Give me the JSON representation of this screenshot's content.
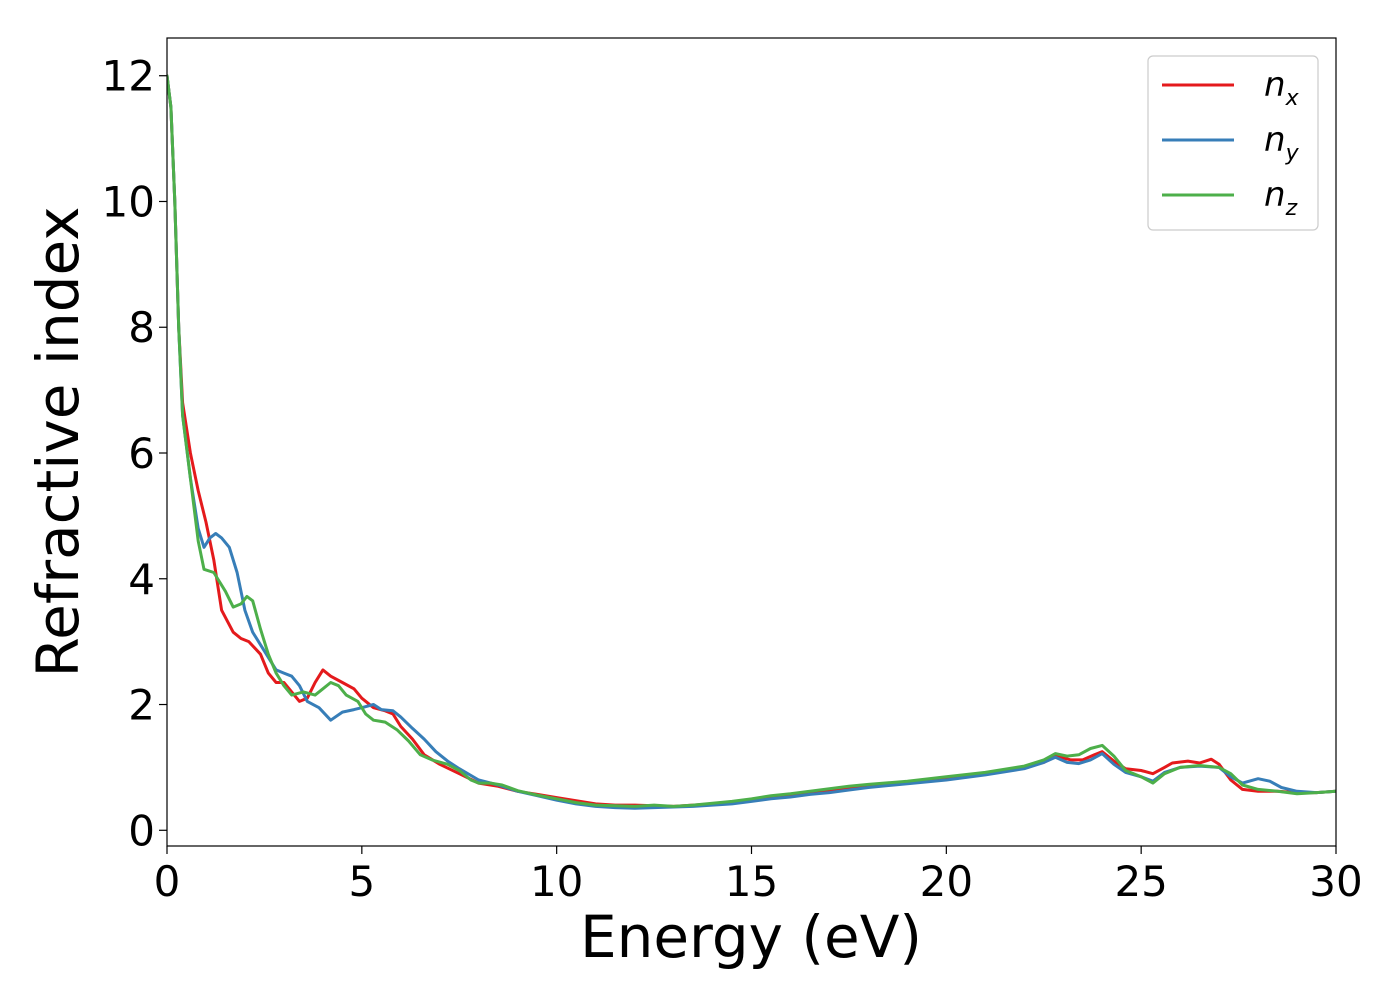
{
  "chart_data": {
    "type": "line",
    "title": "",
    "xlabel": "Energy (eV)",
    "ylabel": "Refractive index",
    "xlim": [
      0,
      30
    ],
    "ylim": [
      -0.25,
      12.6
    ],
    "x_ticks": [
      0,
      5,
      10,
      15,
      20,
      25,
      30
    ],
    "y_ticks": [
      0,
      2,
      4,
      6,
      8,
      10,
      12
    ],
    "grid": false,
    "legend_position": "top-right",
    "series": [
      {
        "name_base": "n",
        "name_sub": "x",
        "color": "#e41a1c",
        "points": [
          [
            0,
            12
          ],
          [
            0.1,
            11.5
          ],
          [
            0.2,
            10
          ],
          [
            0.3,
            8
          ],
          [
            0.4,
            6.8
          ],
          [
            0.6,
            6
          ],
          [
            0.8,
            5.4
          ],
          [
            1.0,
            4.9
          ],
          [
            1.2,
            4.3
          ],
          [
            1.4,
            3.5
          ],
          [
            1.7,
            3.15
          ],
          [
            1.9,
            3.05
          ],
          [
            2.1,
            3.0
          ],
          [
            2.4,
            2.8
          ],
          [
            2.6,
            2.5
          ],
          [
            2.8,
            2.35
          ],
          [
            3.0,
            2.35
          ],
          [
            3.2,
            2.2
          ],
          [
            3.4,
            2.05
          ],
          [
            3.6,
            2.1
          ],
          [
            3.8,
            2.35
          ],
          [
            4.0,
            2.55
          ],
          [
            4.2,
            2.45
          ],
          [
            4.5,
            2.35
          ],
          [
            4.8,
            2.25
          ],
          [
            5.0,
            2.1
          ],
          [
            5.3,
            1.95
          ],
          [
            5.6,
            1.9
          ],
          [
            5.8,
            1.85
          ],
          [
            6.0,
            1.65
          ],
          [
            6.3,
            1.45
          ],
          [
            6.6,
            1.2
          ],
          [
            7.0,
            1.05
          ],
          [
            7.5,
            0.9
          ],
          [
            8.0,
            0.75
          ],
          [
            8.5,
            0.7
          ],
          [
            9.0,
            0.62
          ],
          [
            9.5,
            0.57
          ],
          [
            10.0,
            0.52
          ],
          [
            10.5,
            0.47
          ],
          [
            11.0,
            0.42
          ],
          [
            11.5,
            0.4
          ],
          [
            12.0,
            0.4
          ],
          [
            12.5,
            0.39
          ],
          [
            13.0,
            0.38
          ],
          [
            13.5,
            0.4
          ],
          [
            14.0,
            0.42
          ],
          [
            14.5,
            0.44
          ],
          [
            15.0,
            0.48
          ],
          [
            15.5,
            0.52
          ],
          [
            16.0,
            0.55
          ],
          [
            16.5,
            0.58
          ],
          [
            17.0,
            0.62
          ],
          [
            17.5,
            0.66
          ],
          [
            18.0,
            0.7
          ],
          [
            19.0,
            0.76
          ],
          [
            20.0,
            0.83
          ],
          [
            21.0,
            0.9
          ],
          [
            22.0,
            1.0
          ],
          [
            22.5,
            1.08
          ],
          [
            22.8,
            1.18
          ],
          [
            23.2,
            1.12
          ],
          [
            23.5,
            1.12
          ],
          [
            23.8,
            1.2
          ],
          [
            24.0,
            1.25
          ],
          [
            24.3,
            1.1
          ],
          [
            24.6,
            0.98
          ],
          [
            25.0,
            0.95
          ],
          [
            25.3,
            0.9
          ],
          [
            25.6,
            1.0
          ],
          [
            25.8,
            1.07
          ],
          [
            26.2,
            1.1
          ],
          [
            26.5,
            1.07
          ],
          [
            26.8,
            1.13
          ],
          [
            27.0,
            1.05
          ],
          [
            27.3,
            0.8
          ],
          [
            27.6,
            0.65
          ],
          [
            28.0,
            0.62
          ],
          [
            28.5,
            0.62
          ],
          [
            29.0,
            0.6
          ],
          [
            29.5,
            0.6
          ],
          [
            30.0,
            0.62
          ]
        ]
      },
      {
        "name_base": "n",
        "name_sub": "y",
        "color": "#377eb8",
        "points": [
          [
            0,
            12
          ],
          [
            0.1,
            11.5
          ],
          [
            0.2,
            10
          ],
          [
            0.3,
            8
          ],
          [
            0.4,
            6.6
          ],
          [
            0.6,
            5.6
          ],
          [
            0.8,
            4.8
          ],
          [
            0.95,
            4.5
          ],
          [
            1.1,
            4.65
          ],
          [
            1.25,
            4.72
          ],
          [
            1.4,
            4.65
          ],
          [
            1.6,
            4.5
          ],
          [
            1.8,
            4.1
          ],
          [
            2.0,
            3.5
          ],
          [
            2.2,
            3.15
          ],
          [
            2.5,
            2.85
          ],
          [
            2.8,
            2.55
          ],
          [
            3.0,
            2.5
          ],
          [
            3.2,
            2.45
          ],
          [
            3.4,
            2.3
          ],
          [
            3.6,
            2.05
          ],
          [
            3.9,
            1.95
          ],
          [
            4.2,
            1.75
          ],
          [
            4.5,
            1.88
          ],
          [
            4.8,
            1.92
          ],
          [
            5.0,
            1.95
          ],
          [
            5.3,
            2.0
          ],
          [
            5.5,
            1.92
          ],
          [
            5.8,
            1.9
          ],
          [
            6.0,
            1.8
          ],
          [
            6.3,
            1.62
          ],
          [
            6.6,
            1.45
          ],
          [
            6.9,
            1.25
          ],
          [
            7.2,
            1.1
          ],
          [
            7.5,
            0.98
          ],
          [
            8.0,
            0.8
          ],
          [
            8.5,
            0.72
          ],
          [
            9.0,
            0.62
          ],
          [
            9.5,
            0.55
          ],
          [
            10.0,
            0.48
          ],
          [
            10.5,
            0.42
          ],
          [
            11.0,
            0.38
          ],
          [
            11.5,
            0.36
          ],
          [
            12.0,
            0.35
          ],
          [
            12.5,
            0.36
          ],
          [
            13.0,
            0.37
          ],
          [
            13.5,
            0.38
          ],
          [
            14.0,
            0.4
          ],
          [
            14.5,
            0.42
          ],
          [
            15.0,
            0.46
          ],
          [
            15.5,
            0.5
          ],
          [
            16.0,
            0.53
          ],
          [
            16.5,
            0.57
          ],
          [
            17.0,
            0.6
          ],
          [
            17.5,
            0.64
          ],
          [
            18.0,
            0.68
          ],
          [
            19.0,
            0.74
          ],
          [
            20.0,
            0.8
          ],
          [
            21.0,
            0.88
          ],
          [
            22.0,
            0.98
          ],
          [
            22.5,
            1.08
          ],
          [
            22.8,
            1.16
          ],
          [
            23.1,
            1.08
          ],
          [
            23.4,
            1.06
          ],
          [
            23.7,
            1.12
          ],
          [
            24.0,
            1.22
          ],
          [
            24.3,
            1.05
          ],
          [
            24.6,
            0.92
          ],
          [
            25.0,
            0.85
          ],
          [
            25.3,
            0.78
          ],
          [
            25.6,
            0.92
          ],
          [
            26.0,
            1.0
          ],
          [
            26.5,
            1.02
          ],
          [
            27.0,
            1.0
          ],
          [
            27.3,
            0.85
          ],
          [
            27.6,
            0.75
          ],
          [
            28.0,
            0.82
          ],
          [
            28.3,
            0.78
          ],
          [
            28.6,
            0.68
          ],
          [
            29.0,
            0.62
          ],
          [
            29.5,
            0.6
          ],
          [
            30.0,
            0.62
          ]
        ]
      },
      {
        "name_base": "n",
        "name_sub": "z",
        "color": "#4daf4a",
        "points": [
          [
            0,
            12
          ],
          [
            0.1,
            11.5
          ],
          [
            0.2,
            10
          ],
          [
            0.3,
            8
          ],
          [
            0.4,
            6.6
          ],
          [
            0.6,
            5.6
          ],
          [
            0.8,
            4.6
          ],
          [
            0.95,
            4.15
          ],
          [
            1.2,
            4.1
          ],
          [
            1.5,
            3.8
          ],
          [
            1.7,
            3.55
          ],
          [
            1.9,
            3.6
          ],
          [
            2.05,
            3.72
          ],
          [
            2.2,
            3.65
          ],
          [
            2.4,
            3.2
          ],
          [
            2.6,
            2.8
          ],
          [
            2.8,
            2.5
          ],
          [
            3.0,
            2.3
          ],
          [
            3.2,
            2.15
          ],
          [
            3.5,
            2.2
          ],
          [
            3.8,
            2.15
          ],
          [
            4.0,
            2.25
          ],
          [
            4.2,
            2.35
          ],
          [
            4.4,
            2.3
          ],
          [
            4.6,
            2.15
          ],
          [
            4.9,
            2.05
          ],
          [
            5.1,
            1.85
          ],
          [
            5.3,
            1.75
          ],
          [
            5.6,
            1.72
          ],
          [
            5.9,
            1.6
          ],
          [
            6.2,
            1.42
          ],
          [
            6.5,
            1.2
          ],
          [
            6.8,
            1.12
          ],
          [
            7.2,
            1.05
          ],
          [
            7.5,
            0.95
          ],
          [
            7.8,
            0.8
          ],
          [
            8.0,
            0.75
          ],
          [
            8.3,
            0.75
          ],
          [
            8.6,
            0.72
          ],
          [
            9.0,
            0.63
          ],
          [
            9.5,
            0.56
          ],
          [
            10.0,
            0.5
          ],
          [
            10.5,
            0.44
          ],
          [
            11.0,
            0.4
          ],
          [
            11.5,
            0.39
          ],
          [
            12.0,
            0.38
          ],
          [
            12.5,
            0.4
          ],
          [
            13.0,
            0.38
          ],
          [
            13.5,
            0.4
          ],
          [
            14.0,
            0.43
          ],
          [
            14.5,
            0.46
          ],
          [
            15.0,
            0.5
          ],
          [
            15.5,
            0.55
          ],
          [
            16.0,
            0.58
          ],
          [
            16.5,
            0.62
          ],
          [
            17.0,
            0.66
          ],
          [
            17.5,
            0.7
          ],
          [
            18.0,
            0.73
          ],
          [
            19.0,
            0.78
          ],
          [
            20.0,
            0.85
          ],
          [
            21.0,
            0.92
          ],
          [
            22.0,
            1.02
          ],
          [
            22.5,
            1.12
          ],
          [
            22.8,
            1.22
          ],
          [
            23.1,
            1.18
          ],
          [
            23.4,
            1.2
          ],
          [
            23.7,
            1.3
          ],
          [
            24.0,
            1.35
          ],
          [
            24.3,
            1.18
          ],
          [
            24.6,
            0.95
          ],
          [
            25.0,
            0.85
          ],
          [
            25.3,
            0.75
          ],
          [
            25.6,
            0.9
          ],
          [
            26.0,
            1.0
          ],
          [
            26.5,
            1.03
          ],
          [
            27.0,
            1.0
          ],
          [
            27.3,
            0.9
          ],
          [
            27.6,
            0.72
          ],
          [
            28.0,
            0.65
          ],
          [
            28.5,
            0.62
          ],
          [
            29.0,
            0.58
          ],
          [
            29.5,
            0.6
          ],
          [
            30.0,
            0.62
          ]
        ]
      }
    ]
  }
}
